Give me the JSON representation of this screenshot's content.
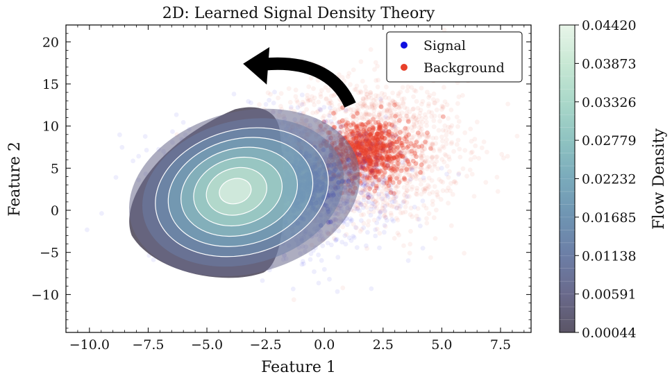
{
  "chart_data": {
    "type": "scatter",
    "title": "2D: Learned Signal Density Theory",
    "xlabel": "Feature 1",
    "ylabel": "Feature 2",
    "xlim": [
      -11.0,
      8.8
    ],
    "ylim": [
      -14.5,
      22.0
    ],
    "xticks": [
      -10.0,
      -7.5,
      -5.0,
      -2.5,
      0.0,
      2.5,
      5.0,
      7.5
    ],
    "xtick_labels": [
      "−10.0",
      "−7.5",
      "−5.0",
      "−2.5",
      "0.0",
      "2.5",
      "5.0",
      "7.5"
    ],
    "yticks": [
      -10,
      -5,
      0,
      5,
      10,
      15,
      20
    ],
    "ytick_labels": [
      "−10",
      "−5",
      "0",
      "5",
      "10",
      "15",
      "20"
    ],
    "series": [
      {
        "name": "Signal",
        "color": "#1010e0",
        "center": [
          -1.8,
          3.0
        ],
        "spread": [
          2.3,
          3.6
        ]
      },
      {
        "name": "Background",
        "color": "#e8402a",
        "center": [
          1.8,
          7.0
        ],
        "spread": [
          2.0,
          4.2
        ]
      }
    ],
    "legend": {
      "position": "top-right",
      "entries": [
        "Signal",
        "Background"
      ]
    },
    "density_contours": {
      "peak": [
        -3.6,
        2.3
      ],
      "levels": 8
    },
    "colorbar": {
      "label": "Flow Density",
      "ticks": [
        "0.00044",
        "0.00591",
        "0.01138",
        "0.01685",
        "0.02232",
        "0.02779",
        "0.03326",
        "0.03873",
        "0.04420"
      ],
      "range": [
        0.00044,
        0.0442
      ],
      "colors": [
        "#5b5566",
        "#6a6a8c",
        "#6c7ea6",
        "#6f94b2",
        "#7aaabb",
        "#8fc3c1",
        "#aad8c9",
        "#c8e8d4",
        "#e8f5e9"
      ]
    },
    "annotation": {
      "type": "arrow",
      "from": [
        1.1,
        12.5
      ],
      "to": [
        -3.4,
        17.4
      ],
      "color": "#000000"
    },
    "grid": false
  }
}
